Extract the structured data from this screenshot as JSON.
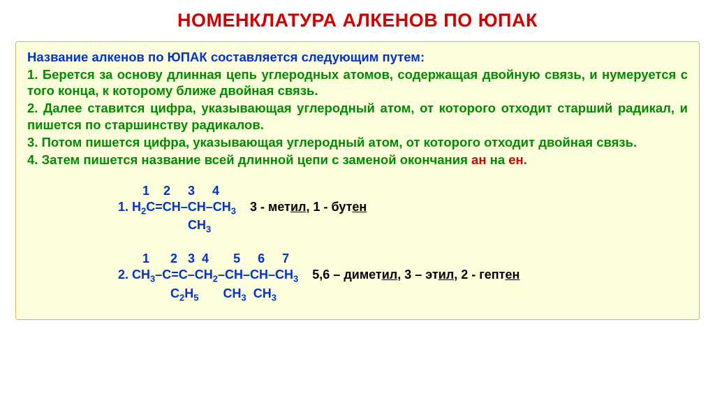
{
  "title": {
    "text": "НОМЕНКЛАТУРА АЛКЕНОВ ПО ЮПАК",
    "color": "#d10000"
  },
  "content": {
    "background": "#fcfedc",
    "border_color": "#d4b85a",
    "intro": {
      "text": "Название алкенов по ЮПАК составляется следующим путем:",
      "color": "#0033cc"
    },
    "rules": [
      {
        "text": "1. Берется за основу длинная цепь углеродных атомов, содержащая двойную связь, и нумеруется с того конца, к которому ближе двойная связь.",
        "color": "#008c00"
      },
      {
        "text": "2. Далее ставится цифра, указывающая углеродный атом, от которого отходит старший радикал, и пишется по старшинству радикалов.",
        "color": "#008c00"
      },
      {
        "text": "3. Потом пишется цифра, указывающая углеродный атом, от которого отходит двойная связь.",
        "color": "#008c00"
      }
    ],
    "rule4": {
      "prefix": "4. Затем пишется название всей длинной цепи с заменой окончания ",
      "an": "ан",
      "mid": " на ",
      "en": "ен",
      "suffix": ".",
      "color_main": "#008c00",
      "color_highlight": "#d10000"
    }
  },
  "examples": {
    "ex1": {
      "numbers": "       1    2     3     4",
      "name_part1": "3 - мет",
      "name_ul1": "ил",
      "name_part2": ", 1 - бут",
      "name_ul2": "ен"
    },
    "ex2": {
      "numbers": "       1      2   3  4       5     6     7",
      "name_part1": "5,6 – димет",
      "name_ul1": "ил",
      "name_part2": ", 3 – эт",
      "name_ul2": "ил",
      "name_part3": ", 2 - гепт",
      "name_ul3": "ен"
    }
  },
  "colors": {
    "red": "#d10000",
    "blue": "#0033cc",
    "green": "#008c00",
    "black": "#000000"
  }
}
